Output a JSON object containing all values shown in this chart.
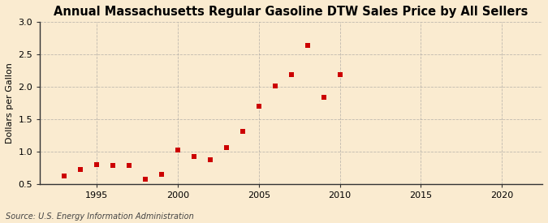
{
  "title": "Annual Massachusetts Regular Gasoline DTW Sales Price by All Sellers",
  "ylabel": "Dollars per Gallon",
  "source": "Source: U.S. Energy Information Administration",
  "years": [
    1993,
    1994,
    1995,
    1996,
    1997,
    1998,
    1999,
    2000,
    2001,
    2002,
    2003,
    2004,
    2005,
    2006,
    2007,
    2008,
    2009,
    2010
  ],
  "values": [
    0.62,
    0.72,
    0.8,
    0.79,
    0.79,
    0.58,
    0.65,
    1.02,
    0.93,
    0.87,
    1.06,
    1.31,
    1.7,
    2.02,
    2.19,
    2.64,
    1.84,
    2.19
  ],
  "marker_color": "#cc0000",
  "background_color": "#faebd0",
  "grid_color": "#999999",
  "xlim": [
    1991.5,
    2022.5
  ],
  "ylim": [
    0.5,
    3.0
  ],
  "xticks": [
    1995,
    2000,
    2005,
    2010,
    2015,
    2020
  ],
  "yticks": [
    0.5,
    1.0,
    1.5,
    2.0,
    2.5,
    3.0
  ],
  "title_fontsize": 10.5,
  "label_fontsize": 8,
  "tick_fontsize": 8,
  "source_fontsize": 7
}
